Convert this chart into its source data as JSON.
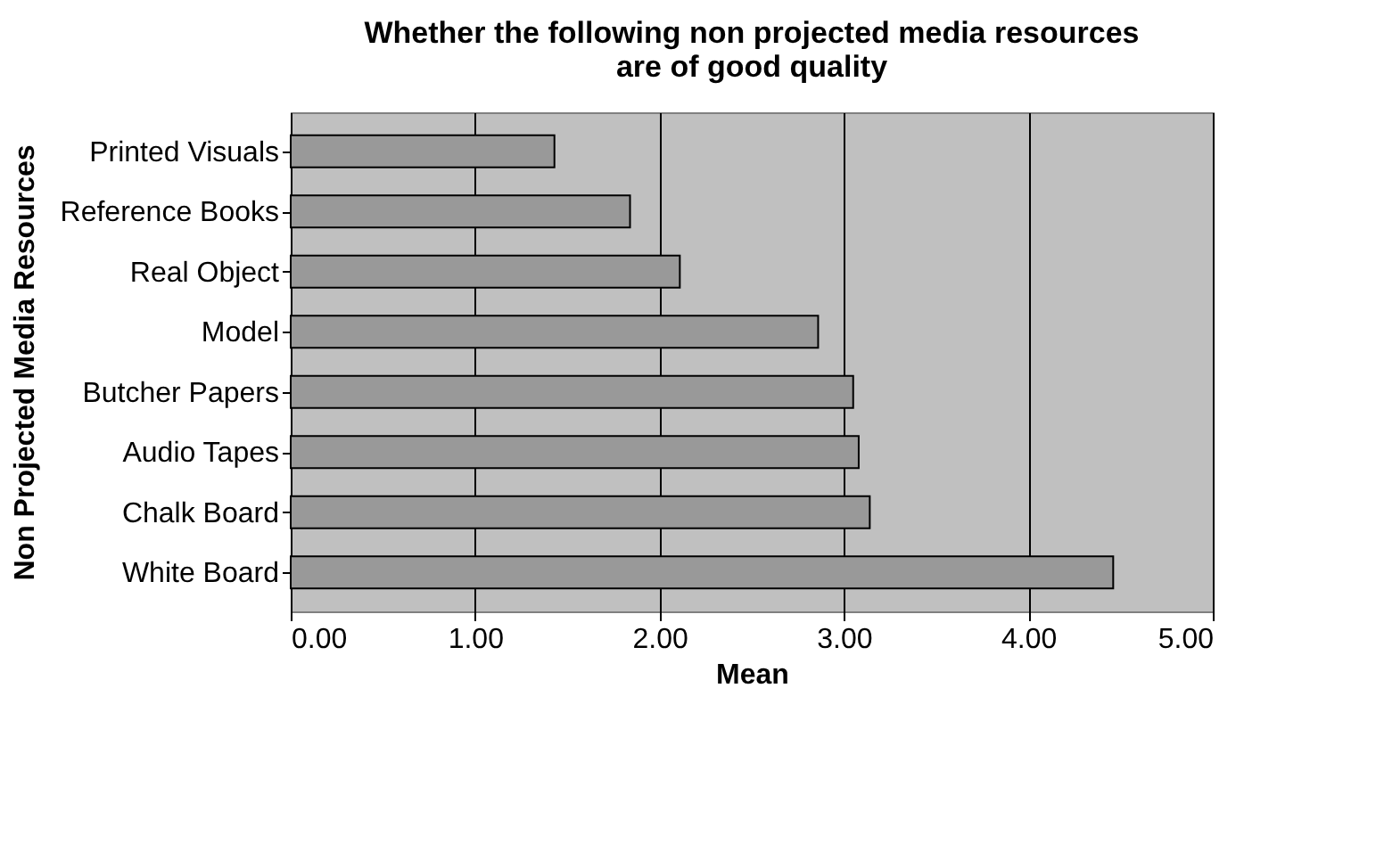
{
  "chart_data": {
    "type": "bar",
    "orientation": "horizontal",
    "title": [
      "Whether the following non projected media resources",
      "are of good quality"
    ],
    "xlabel": "Mean",
    "ylabel": "Non Projected Media Resources",
    "categories": [
      "Printed Visuals",
      "Reference Books",
      "Real Object",
      "Model",
      "Butcher Papers",
      "Audio Tapes",
      "Chalk Board",
      "White Board"
    ],
    "values": [
      1.43,
      1.84,
      2.11,
      2.86,
      3.05,
      3.08,
      3.14,
      4.46
    ],
    "color": "#999999",
    "xlim": [
      0,
      5
    ],
    "xticks": [
      {
        "value": 0,
        "label": "0.00"
      },
      {
        "value": 1,
        "label": "1.00"
      },
      {
        "value": 2,
        "label": "2.00"
      },
      {
        "value": 3,
        "label": "3.00"
      },
      {
        "value": 4,
        "label": "4.00"
      },
      {
        "value": 5,
        "label": "5.00"
      }
    ],
    "grid": "x"
  }
}
